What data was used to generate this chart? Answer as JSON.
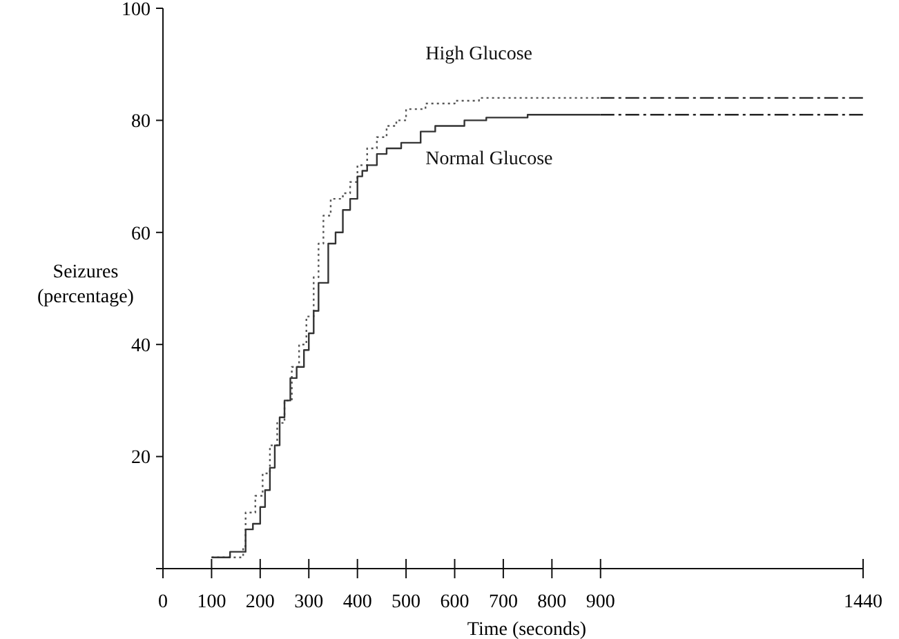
{
  "chart_data": {
    "type": "step",
    "xlabel": "Time (seconds)",
    "ylabel": "Seizures\n(percentage)",
    "xlim": [
      0,
      1440
    ],
    "xticks": [
      0,
      100,
      200,
      300,
      400,
      500,
      600,
      700,
      800,
      900,
      1440
    ],
    "ylim": [
      0,
      100
    ],
    "yticks": [
      {
        "value": 0,
        "label": null
      },
      20,
      40,
      60,
      80,
      100
    ],
    "grid": false,
    "marker": "none",
    "series": [
      {
        "name": "High Glucose",
        "color": "#555555",
        "line_style": "dotted",
        "x": [
          100,
          165,
          170,
          190,
          205,
          220,
          235,
          250,
          265,
          280,
          295,
          310,
          320,
          330,
          345,
          370,
          385,
          400,
          420,
          440,
          460,
          480,
          500,
          540,
          600,
          650,
          900
        ],
        "values": [
          2,
          4,
          10,
          13,
          17,
          22,
          26,
          30,
          36,
          40,
          45,
          52,
          58,
          63,
          66,
          67,
          69,
          72,
          75,
          77,
          79,
          80,
          82,
          83,
          83.5,
          84,
          84
        ]
      },
      {
        "name": "Normal Glucose",
        "color": "#333333",
        "line_style": "solid",
        "x": [
          100,
          138,
          170,
          185,
          200,
          210,
          220,
          230,
          240,
          250,
          262,
          275,
          290,
          300,
          310,
          320,
          340,
          355,
          370,
          385,
          400,
          410,
          420,
          440,
          460,
          490,
          530,
          560,
          620,
          665,
          750,
          900
        ],
        "values": [
          2,
          3,
          7,
          8,
          11,
          14,
          18,
          22,
          27,
          30,
          34,
          36,
          39,
          42,
          46,
          51,
          58,
          60,
          64,
          66,
          70,
          71,
          72,
          74,
          75,
          76,
          78,
          79,
          80,
          80.5,
          81,
          81
        ]
      },
      {
        "type": "line",
        "color": "#222222",
        "line_style": "dashed",
        "x": [
          900,
          1440
        ],
        "values": [
          84,
          84
        ]
      },
      {
        "type": "line",
        "color": "#222222",
        "line_style": "dashed",
        "x": [
          900,
          1440
        ],
        "values": [
          81,
          81
        ]
      }
    ]
  }
}
